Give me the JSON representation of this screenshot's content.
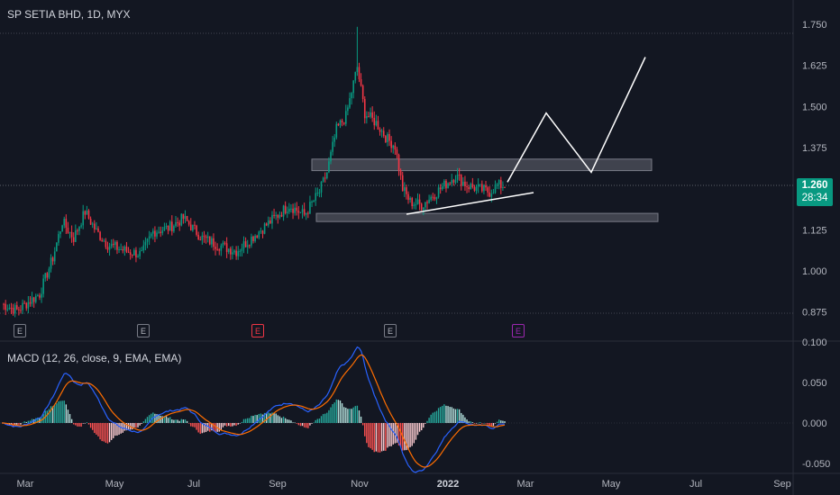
{
  "header": {
    "ticker_line": "SP SETIA BHD, 1D, MYX"
  },
  "price_badge": {
    "last_price": "1.260",
    "countdown": "28:34",
    "color": "#089981"
  },
  "macd_panel": {
    "title": "MACD (12, 26, close, 9, EMA, EMA)"
  },
  "earnings_markers": [
    {
      "label": "E",
      "style": "gray"
    },
    {
      "label": "E",
      "style": "gray"
    },
    {
      "label": "E",
      "style": "red"
    },
    {
      "label": "E",
      "style": "gray"
    },
    {
      "label": "E",
      "style": "purple"
    }
  ],
  "colors": {
    "up": "#089981",
    "down": "#f23645",
    "macd_line": "#2962ff",
    "signal_line": "#ff6d00",
    "zone": "#787b86",
    "background": "#131722"
  },
  "chart_data": [
    {
      "type": "candlestick",
      "title": "SP SETIA BHD, 1D, MYX",
      "y_axis_ticks": [
        "1.750",
        "1.625",
        "1.500",
        "1.375",
        "1.250",
        "1.125",
        "1.000",
        "0.875"
      ],
      "x_axis_ticks": [
        "Mar",
        "May",
        "Jul",
        "Sep",
        "Nov",
        "2022",
        "Mar",
        "May",
        "Jul",
        "Sep"
      ],
      "ylim": [
        0.86,
        1.78
      ],
      "last_price": 1.26,
      "monthly_closes": [
        {
          "month": "Feb 2021",
          "value": 0.9
        },
        {
          "month": "Mar 2021",
          "value": 1.15
        },
        {
          "month": "Apr 2021",
          "value": 1.1
        },
        {
          "month": "May 2021",
          "value": 1.06
        },
        {
          "month": "Jun 2021",
          "value": 1.11
        },
        {
          "month": "Jul 2021",
          "value": 1.09
        },
        {
          "month": "Aug 2021",
          "value": 1.14
        },
        {
          "month": "Sep 2021",
          "value": 1.31
        },
        {
          "month": "Oct 2021",
          "value": 1.58
        },
        {
          "month": "Nov 2021",
          "value": 1.22
        },
        {
          "month": "Dec 2021",
          "value": 1.27
        },
        {
          "month": "Jan 2022",
          "value": 1.24
        }
      ],
      "annotations": {
        "zones": [
          {
            "from": 1.305,
            "to": 1.34
          },
          {
            "from": 1.15,
            "to": 1.175
          }
        ],
        "projection_path": [
          1.27,
          1.48,
          1.3,
          1.65
        ]
      }
    },
    {
      "type": "line",
      "title": "MACD (12, 26, close, 9, EMA, EMA)",
      "y_axis_ticks": [
        "0.100",
        "0.050",
        "0.000",
        "-0.050"
      ],
      "ylim": [
        -0.06,
        0.1
      ],
      "series": [
        {
          "name": "MACD",
          "color": "#2962ff"
        },
        {
          "name": "Signal",
          "color": "#ff6d00"
        }
      ]
    }
  ]
}
